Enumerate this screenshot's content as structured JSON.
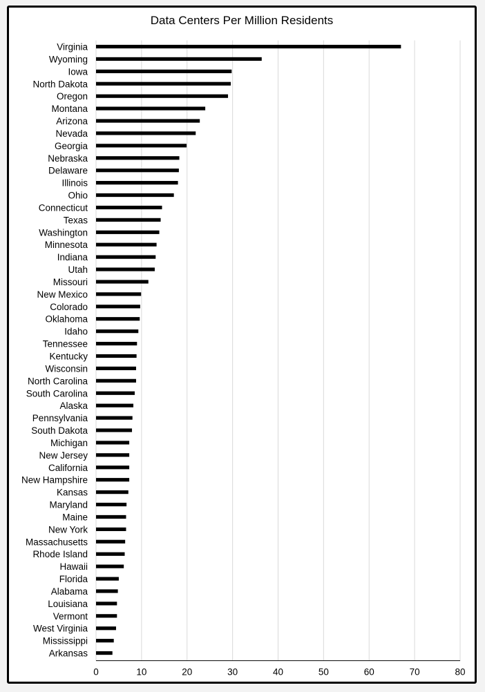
{
  "chart_data": {
    "type": "bar",
    "orientation": "horizontal",
    "title": "Data Centers Per Million Residents",
    "xlabel": "",
    "ylabel": "",
    "xlim": [
      0,
      80
    ],
    "x_ticks": [
      0,
      10,
      20,
      30,
      40,
      50,
      60,
      70,
      80
    ],
    "grid": true,
    "bar_color": "#000000",
    "categories": [
      "Virginia",
      "Wyoming",
      "Iowa",
      "North Dakota",
      "Oregon",
      "Montana",
      "Arizona",
      "Nevada",
      "Georgia",
      "Nebraska",
      "Delaware",
      "Illinois",
      "Ohio",
      "Connecticut",
      "Texas",
      "Washington",
      "Minnesota",
      "Indiana",
      "Utah",
      "Missouri",
      "New Mexico",
      "Colorado",
      "Oklahoma",
      "Idaho",
      "Tennessee",
      "Kentucky",
      "Wisconsin",
      "North Carolina",
      "South Carolina",
      "Alaska",
      "Pennsylvania",
      "South Dakota",
      "Michigan",
      "New Jersey",
      "California",
      "New Hampshire",
      "Kansas",
      "Maryland",
      "Maine",
      "New York",
      "Massachusetts",
      "Rhode Island",
      "Hawaii",
      "Florida",
      "Alabama",
      "Louisiana",
      "Vermont",
      "West Virginia",
      "Mississippi",
      "Arkansas"
    ],
    "values": [
      67.0,
      36.4,
      29.8,
      29.6,
      29.0,
      24.0,
      22.8,
      21.9,
      19.9,
      18.3,
      18.2,
      18.0,
      17.1,
      14.5,
      14.2,
      13.9,
      13.3,
      13.1,
      12.9,
      11.5,
      9.9,
      9.7,
      9.6,
      9.3,
      9.0,
      8.9,
      8.8,
      8.8,
      8.5,
      8.2,
      8.0,
      7.9,
      7.3,
      7.3,
      7.3,
      7.3,
      7.1,
      6.7,
      6.6,
      6.6,
      6.4,
      6.3,
      6.1,
      5.0,
      4.8,
      4.6,
      4.6,
      4.4,
      3.9,
      3.6
    ]
  }
}
